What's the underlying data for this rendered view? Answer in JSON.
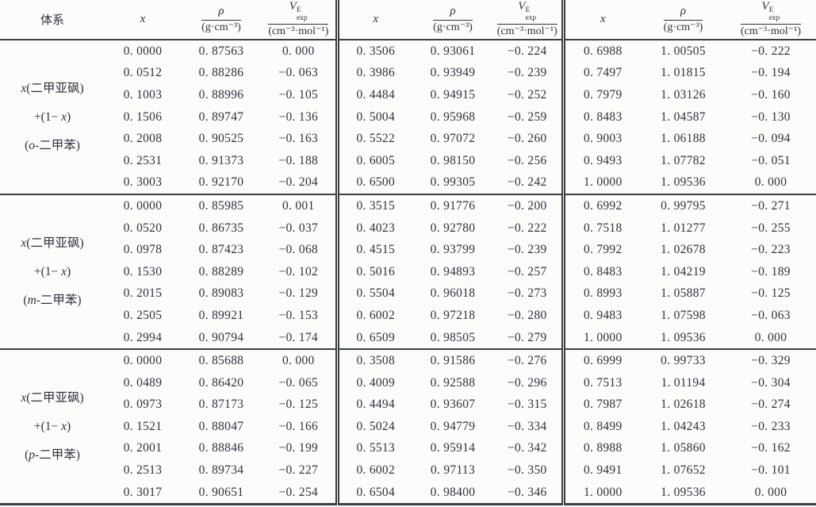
{
  "header": {
    "system_label": "体系",
    "x_label": "x",
    "rho_numerator": "ρ",
    "rho_denominator": "(g·cm⁻³)",
    "v_base": "V",
    "v_sup": "E",
    "v_sub": "exp",
    "v_denominator": "(cm⁻³·mol⁻¹)"
  },
  "groups": [
    {
      "label_lines": [
        [
          {
            "t": "x",
            "i": true
          },
          {
            "t": "(二甲亚砜)",
            "i": false
          }
        ],
        [
          {
            "t": "+(1− ",
            "i": false
          },
          {
            "t": "x",
            "i": true
          },
          {
            "t": ")",
            "i": false
          }
        ],
        [
          {
            "t": "(",
            "i": false
          },
          {
            "t": "o",
            "i": true
          },
          {
            "t": "-二甲苯)",
            "i": false
          }
        ]
      ],
      "blocks": [
        [
          [
            "0. 0000",
            "0. 87563",
            "0. 000"
          ],
          [
            "0. 0512",
            "0. 88286",
            "−0. 063"
          ],
          [
            "0. 1003",
            "0. 88996",
            "−0. 105"
          ],
          [
            "0. 1506",
            "0. 89747",
            "−0. 136"
          ],
          [
            "0. 2008",
            "0. 90525",
            "−0. 163"
          ],
          [
            "0. 2531",
            "0. 91373",
            "−0. 188"
          ],
          [
            "0. 3003",
            "0. 92170",
            "−0. 204"
          ]
        ],
        [
          [
            "0. 3506",
            "0. 93061",
            "−0. 224"
          ],
          [
            "0. 3986",
            "0. 93949",
            "−0. 239"
          ],
          [
            "0. 4484",
            "0. 94915",
            "−0. 252"
          ],
          [
            "0. 5004",
            "0. 95968",
            "−0. 259"
          ],
          [
            "0. 5522",
            "0. 97072",
            "−0. 260"
          ],
          [
            "0. 6005",
            "0. 98150",
            "−0. 256"
          ],
          [
            "0. 6500",
            "0. 99305",
            "−0. 242"
          ]
        ],
        [
          [
            "0. 6988",
            "1. 00505",
            "−0. 222"
          ],
          [
            "0. 7497",
            "1. 01815",
            "−0. 194"
          ],
          [
            "0. 7979",
            "1. 03126",
            "−0. 160"
          ],
          [
            "0. 8483",
            "1. 04587",
            "−0. 130"
          ],
          [
            "0. 9003",
            "1. 06188",
            "−0. 094"
          ],
          [
            "0. 9493",
            "1. 07782",
            "−0. 051"
          ],
          [
            "1. 0000",
            "1. 09536",
            "0. 000"
          ]
        ]
      ]
    },
    {
      "label_lines": [
        [
          {
            "t": "x",
            "i": true
          },
          {
            "t": "(二甲亚砜)",
            "i": false
          }
        ],
        [
          {
            "t": "+(1− ",
            "i": false
          },
          {
            "t": "x",
            "i": true
          },
          {
            "t": ")",
            "i": false
          }
        ],
        [
          {
            "t": "(",
            "i": false
          },
          {
            "t": "m",
            "i": true
          },
          {
            "t": "-二甲苯)",
            "i": false
          }
        ]
      ],
      "blocks": [
        [
          [
            "0. 0000",
            "0. 85985",
            "0. 001"
          ],
          [
            "0. 0520",
            "0. 86735",
            "−0. 037"
          ],
          [
            "0. 0978",
            "0. 87423",
            "−0. 068"
          ],
          [
            "0. 1530",
            "0. 88289",
            "−0. 102"
          ],
          [
            "0. 2015",
            "0. 89083",
            "−0. 129"
          ],
          [
            "0. 2505",
            "0. 89921",
            "−0. 153"
          ],
          [
            "0. 2994",
            "0. 90794",
            "−0. 174"
          ]
        ],
        [
          [
            "0. 3515",
            "0. 91776",
            "−0. 200"
          ],
          [
            "0. 4023",
            "0. 92780",
            "−0. 222"
          ],
          [
            "0. 4515",
            "0. 93799",
            "−0. 239"
          ],
          [
            "0. 5016",
            "0. 94893",
            "−0. 257"
          ],
          [
            "0. 5504",
            "0. 96018",
            "−0. 273"
          ],
          [
            "0. 6002",
            "0. 97218",
            "−0. 280"
          ],
          [
            "0. 6509",
            "0. 98505",
            "−0. 279"
          ]
        ],
        [
          [
            "0. 6992",
            "0. 99795",
            "−0. 271"
          ],
          [
            "0. 7518",
            "1. 01277",
            "−0. 255"
          ],
          [
            "0. 7992",
            "1. 02678",
            "−0. 223"
          ],
          [
            "0. 8483",
            "1. 04219",
            "−0. 189"
          ],
          [
            "0. 8993",
            "1. 05887",
            "−0. 125"
          ],
          [
            "0. 9483",
            "1. 07598",
            "−0. 063"
          ],
          [
            "1. 0000",
            "1. 09536",
            "0. 000"
          ]
        ]
      ]
    },
    {
      "label_lines": [
        [
          {
            "t": "x",
            "i": true
          },
          {
            "t": "(二甲亚砜)",
            "i": false
          }
        ],
        [
          {
            "t": "+(1− ",
            "i": false
          },
          {
            "t": "x",
            "i": true
          },
          {
            "t": ")",
            "i": false
          }
        ],
        [
          {
            "t": "(",
            "i": false
          },
          {
            "t": "p",
            "i": true
          },
          {
            "t": "-二甲苯)",
            "i": false
          }
        ]
      ],
      "blocks": [
        [
          [
            "0. 0000",
            "0. 85688",
            "0. 000"
          ],
          [
            "0. 0489",
            "0. 86420",
            "−0. 065"
          ],
          [
            "0. 0973",
            "0. 87173",
            "−0. 125"
          ],
          [
            "0. 1521",
            "0. 88047",
            "−0. 166"
          ],
          [
            "0. 2001",
            "0. 88846",
            "−0. 199"
          ],
          [
            "0. 2513",
            "0. 89734",
            "−0. 227"
          ],
          [
            "0. 3017",
            "0. 90651",
            "−0. 254"
          ]
        ],
        [
          [
            "0. 3508",
            "0. 91586",
            "−0. 276"
          ],
          [
            "0. 4009",
            "0. 92588",
            "−0. 296"
          ],
          [
            "0. 4494",
            "0. 93607",
            "−0. 315"
          ],
          [
            "0. 5024",
            "0. 94779",
            "−0. 334"
          ],
          [
            "0. 5513",
            "0. 95914",
            "−0. 342"
          ],
          [
            "0. 6002",
            "0. 97113",
            "−0. 350"
          ],
          [
            "0. 6504",
            "0. 98400",
            "−0. 346"
          ]
        ],
        [
          [
            "0. 6999",
            "0. 99733",
            "−0. 329"
          ],
          [
            "0. 7513",
            "1. 01194",
            "−0. 304"
          ],
          [
            "0. 7987",
            "1. 02618",
            "−0. 274"
          ],
          [
            "0. 8499",
            "1. 04243",
            "−0. 233"
          ],
          [
            "0. 8988",
            "1. 05860",
            "−0. 162"
          ],
          [
            "0. 9491",
            "1. 07652",
            "−0. 101"
          ],
          [
            "1. 0000",
            "1. 09536",
            "0. 000"
          ]
        ]
      ]
    }
  ]
}
